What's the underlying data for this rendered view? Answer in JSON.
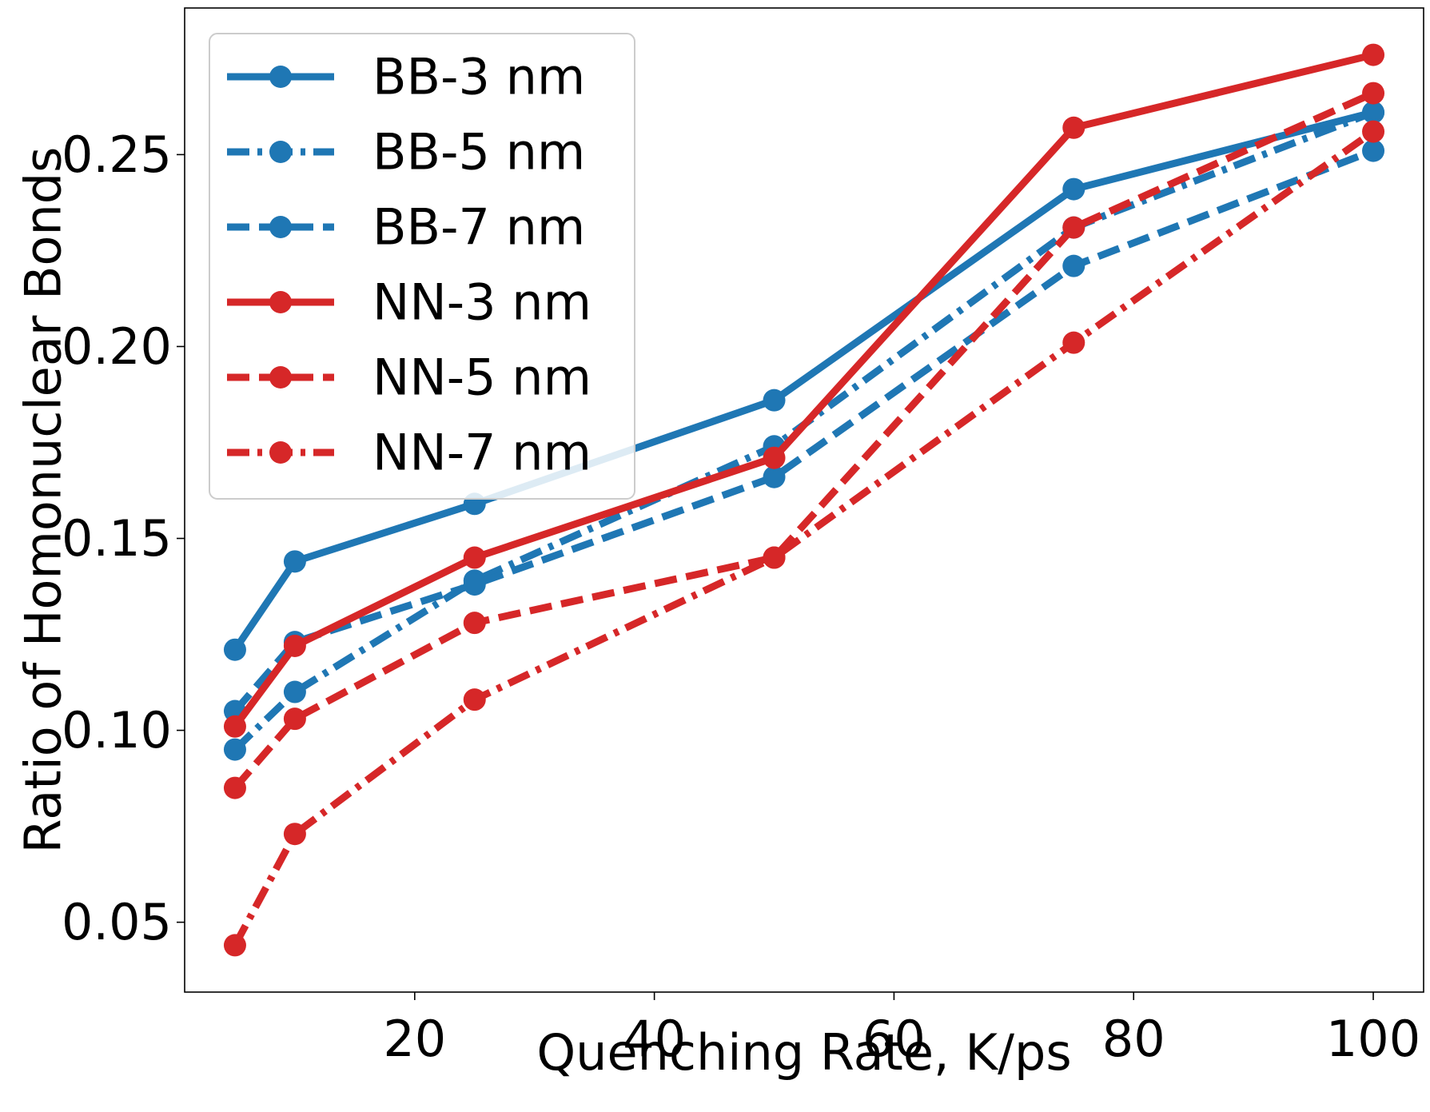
{
  "chart_data": {
    "type": "line",
    "title": "",
    "xlabel": "Quenching Rate, K/ps",
    "ylabel": "Ratio of Homonuclear Bonds",
    "xlim": [
      0.8,
      104.2
    ],
    "ylim": [
      0.0318,
      0.2882
    ],
    "xticks": [
      20,
      40,
      60,
      80,
      100
    ],
    "xtick_labels": [
      "20",
      "40",
      "60",
      "80",
      "100"
    ],
    "yticks": [
      0.05,
      0.1,
      0.15,
      0.2,
      0.25
    ],
    "ytick_labels": [
      "0.05",
      "0.10",
      "0.15",
      "0.20",
      "0.25"
    ],
    "grid": false,
    "legend_position": "top-left",
    "x": [
      5,
      10,
      25,
      50,
      75,
      100
    ],
    "series": [
      {
        "name": "BB-3 nm",
        "color": "#1f77b4",
        "linestyle": "solid",
        "values": [
          0.121,
          0.144,
          0.159,
          0.186,
          0.241,
          0.261
        ]
      },
      {
        "name": "BB-5 nm",
        "color": "#1f77b4",
        "linestyle": "dashdot",
        "values": [
          0.095,
          0.11,
          0.139,
          0.174,
          0.231,
          0.261
        ]
      },
      {
        "name": "BB-7 nm",
        "color": "#1f77b4",
        "linestyle": "dashed",
        "values": [
          0.105,
          0.123,
          0.138,
          0.166,
          0.221,
          0.251
        ]
      },
      {
        "name": "NN-3 nm",
        "color": "#d62728",
        "linestyle": "solid",
        "values": [
          0.101,
          0.122,
          0.145,
          0.171,
          0.257,
          0.276
        ]
      },
      {
        "name": "NN-5 nm",
        "color": "#d62728",
        "linestyle": "dashed",
        "values": [
          0.085,
          0.103,
          0.128,
          0.145,
          0.231,
          0.266
        ]
      },
      {
        "name": "NN-7 nm",
        "color": "#d62728",
        "linestyle": "dashdot",
        "values": [
          0.044,
          0.073,
          0.108,
          0.145,
          0.201,
          0.256
        ]
      }
    ]
  }
}
